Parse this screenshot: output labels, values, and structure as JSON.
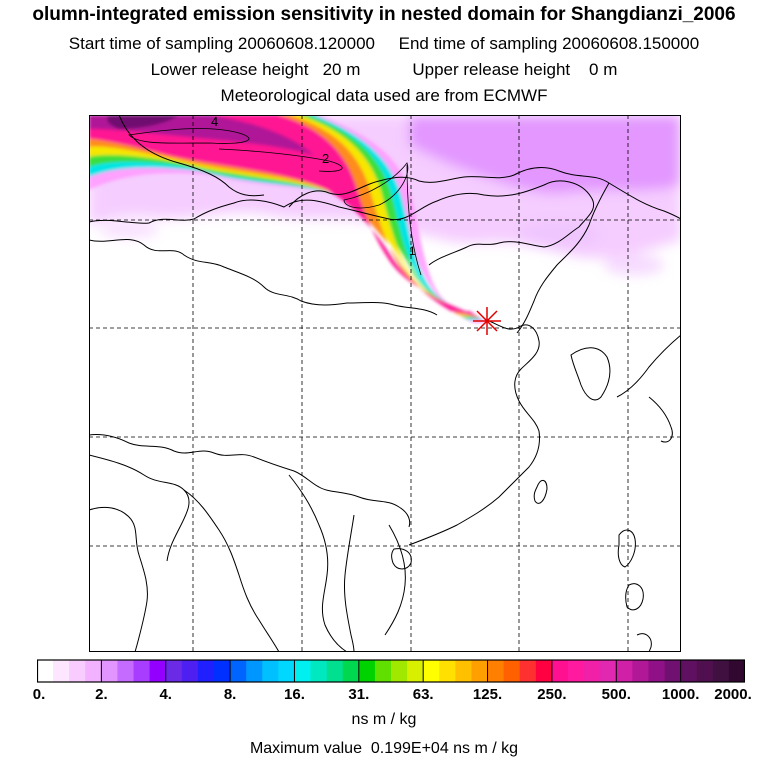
{
  "header": {
    "title": "olumn-integrated emission sensitivity in nested domain for Shangdianzi_2006",
    "sampling_line": "Start time of sampling 20060608.120000     End time of sampling 20060608.150000",
    "height_line": "Lower release height   20 m           Upper release height    0 m",
    "met_line": "Meteorological data used are from ECMWF"
  },
  "map": {
    "contour_labels": [
      "4",
      "2",
      "1"
    ],
    "release_site_marker": "red-star-icon",
    "plume_colors": [
      "#8b1f8e",
      "#ff1493",
      "#ff8c1a",
      "#f7e600",
      "#3adf3a",
      "#00e5e5",
      "#ff99ff"
    ]
  },
  "colorbar": {
    "unit": "ns m / kg",
    "tick_labels": [
      "0.",
      "2.",
      "4.",
      "8.",
      "16.",
      "31.",
      "63.",
      "125.",
      "250.",
      "500.",
      "1000.",
      "2000."
    ],
    "colors": [
      "#ffffff",
      "#fde6ff",
      "#f9ccff",
      "#f3b2ff",
      "#e294ff",
      "#c56bff",
      "#a83cff",
      "#9400ff",
      "#6a2ae6",
      "#4d1ff0",
      "#2020ff",
      "#0030ff",
      "#0064ff",
      "#0096ff",
      "#00c0ff",
      "#00d8ff",
      "#00f0f0",
      "#00e8c0",
      "#00e090",
      "#00d850",
      "#00d200",
      "#60e000",
      "#a0e800",
      "#d8f000",
      "#ffff00",
      "#ffe000",
      "#ffc000",
      "#ffa000",
      "#ff8000",
      "#ff6000",
      "#ff3030",
      "#ff0040",
      "#ff1090",
      "#ff1aa0",
      "#f020a8",
      "#e028b0",
      "#d020a8",
      "#b01898",
      "#901088",
      "#701070",
      "#601060",
      "#501050",
      "#401040",
      "#300830"
    ]
  },
  "footer": {
    "max_value_line": "Maximum value  0.199E+04 ns m / kg"
  }
}
